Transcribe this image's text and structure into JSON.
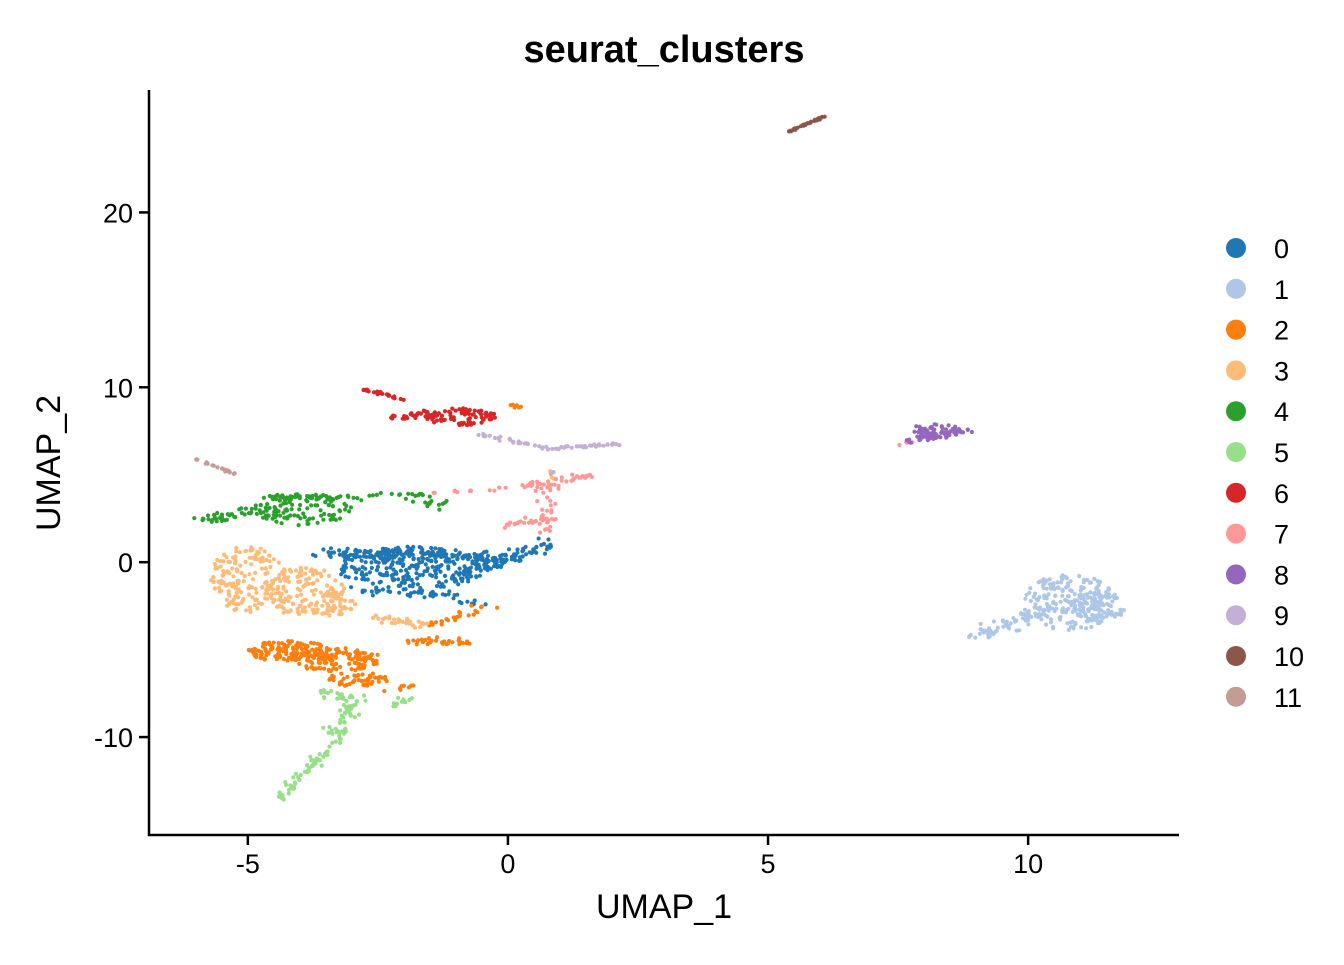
{
  "chart_data": {
    "type": "scatter",
    "title": "seurat_clusters",
    "xlabel": "UMAP_1",
    "ylabel": "UMAP_2",
    "xlim": [
      -6.9,
      12.9
    ],
    "ylim": [
      -15.6,
      27.0
    ],
    "x_ticks": [
      -5,
      0,
      5,
      10
    ],
    "y_ticks": [
      -10,
      0,
      10,
      20
    ],
    "x_tick_labels": [
      "-5",
      "0",
      "5",
      "10"
    ],
    "y_tick_labels": [
      "-10",
      "0",
      "10",
      "20"
    ],
    "grid": false,
    "legend_position": "right",
    "series": [
      {
        "name": "0",
        "color": "#1F77B4",
        "regions": [
          {
            "shape": "blob",
            "cx": -1.8,
            "cy": -0.3,
            "rx": 1.5,
            "ry": 1.2,
            "n": 260
          },
          {
            "shape": "line",
            "from": [
              -3.6,
              0.6
            ],
            "to": [
              -0.2,
              0.2
            ],
            "spread": 0.5,
            "n": 120
          },
          {
            "shape": "line",
            "from": [
              -0.8,
              -0.6
            ],
            "to": [
              0.8,
              1.0
            ],
            "spread": 0.45,
            "n": 90
          },
          {
            "shape": "line",
            "from": [
              -3.0,
              -1.6
            ],
            "to": [
              -1.0,
              -1.8
            ],
            "spread": 0.3,
            "n": 40
          },
          {
            "shape": "line",
            "from": [
              -0.9,
              -2.3
            ],
            "to": [
              -0.4,
              -2.4
            ],
            "spread": 0.2,
            "n": 8
          }
        ]
      },
      {
        "name": "1",
        "color": "#AEC7E8",
        "regions": [
          {
            "shape": "blob",
            "cx": 10.8,
            "cy": -2.3,
            "rx": 0.9,
            "ry": 1.6,
            "n": 200
          },
          {
            "shape": "blob",
            "cx": 11.3,
            "cy": -2.6,
            "rx": 0.55,
            "ry": 0.9,
            "n": 80
          },
          {
            "shape": "line",
            "from": [
              9.0,
              -4.3
            ],
            "to": [
              10.2,
              -2.8
            ],
            "spread": 0.4,
            "n": 60
          }
        ]
      },
      {
        "name": "2",
        "color": "#FF7F0E",
        "regions": [
          {
            "shape": "blob",
            "cx": -4.2,
            "cy": -5.1,
            "rx": 0.8,
            "ry": 0.6,
            "n": 120
          },
          {
            "shape": "blob",
            "cx": -3.3,
            "cy": -5.6,
            "rx": 0.9,
            "ry": 0.7,
            "n": 120
          },
          {
            "shape": "blob",
            "cx": -2.9,
            "cy": -6.7,
            "rx": 0.6,
            "ry": 0.4,
            "n": 50
          },
          {
            "shape": "line",
            "from": [
              -2.0,
              -4.5
            ],
            "to": [
              -0.6,
              -4.6
            ],
            "spread": 0.25,
            "n": 35
          },
          {
            "shape": "line",
            "from": [
              -1.5,
              -3.7
            ],
            "to": [
              -0.4,
              -2.5
            ],
            "spread": 0.25,
            "n": 25
          },
          {
            "shape": "line",
            "from": [
              -2.4,
              -7.4
            ],
            "to": [
              -1.8,
              -7.0
            ],
            "spread": 0.2,
            "n": 8
          },
          {
            "shape": "line",
            "from": [
              0.1,
              9.0
            ],
            "to": [
              0.3,
              8.8
            ],
            "spread": 0.15,
            "n": 6
          }
        ]
      },
      {
        "name": "3",
        "color": "#FFBB78",
        "regions": [
          {
            "shape": "blob",
            "cx": -5.0,
            "cy": -1.0,
            "rx": 0.75,
            "ry": 1.9,
            "n": 160
          },
          {
            "shape": "blob",
            "cx": -3.9,
            "cy": -1.7,
            "rx": 0.8,
            "ry": 1.4,
            "n": 140
          },
          {
            "shape": "blob",
            "cx": -3.3,
            "cy": -2.4,
            "rx": 0.4,
            "ry": 0.7,
            "n": 30
          },
          {
            "shape": "line",
            "from": [
              -2.6,
              -3.1
            ],
            "to": [
              -1.6,
              -3.6
            ],
            "spread": 0.25,
            "n": 30
          },
          {
            "shape": "line",
            "from": [
              0.7,
              5.3
            ],
            "to": [
              0.9,
              4.8
            ],
            "spread": 0.1,
            "n": 4
          }
        ]
      },
      {
        "name": "4",
        "color": "#2CA02C",
        "regions": [
          {
            "shape": "blob",
            "cx": -3.9,
            "cy": 3.0,
            "rx": 0.9,
            "ry": 0.9,
            "n": 100
          },
          {
            "shape": "line",
            "from": [
              -5.8,
              2.4
            ],
            "to": [
              -4.6,
              3.0
            ],
            "spread": 0.4,
            "n": 50
          },
          {
            "shape": "line",
            "from": [
              -4.8,
              3.7
            ],
            "to": [
              -1.5,
              3.8
            ],
            "spread": 0.3,
            "n": 60
          },
          {
            "shape": "line",
            "from": [
              -1.7,
              3.4
            ],
            "to": [
              -1.2,
              3.3
            ],
            "spread": 0.3,
            "n": 12
          }
        ]
      },
      {
        "name": "5",
        "color": "#98DF8A",
        "regions": [
          {
            "shape": "line",
            "from": [
              -4.4,
              -13.5
            ],
            "to": [
              -3.2,
              -10.0
            ],
            "spread": 0.25,
            "n": 60
          },
          {
            "shape": "line",
            "from": [
              -3.3,
              -10.0
            ],
            "to": [
              -3.0,
              -8.0
            ],
            "spread": 0.3,
            "n": 50
          },
          {
            "shape": "line",
            "from": [
              -3.6,
              -7.5
            ],
            "to": [
              -2.8,
              -7.8
            ],
            "spread": 0.3,
            "n": 25
          },
          {
            "shape": "line",
            "from": [
              -2.2,
              -8.2
            ],
            "to": [
              -1.8,
              -7.6
            ],
            "spread": 0.2,
            "n": 12
          }
        ]
      },
      {
        "name": "6",
        "color": "#D62728",
        "regions": [
          {
            "shape": "line",
            "from": [
              -2.8,
              9.9
            ],
            "to": [
              -2.0,
              9.3
            ],
            "spread": 0.1,
            "n": 25
          },
          {
            "shape": "blob",
            "cx": -0.9,
            "cy": 8.3,
            "rx": 0.7,
            "ry": 0.5,
            "n": 90
          },
          {
            "shape": "line",
            "from": [
              -2.2,
              8.2
            ],
            "to": [
              -1.4,
              8.6
            ],
            "spread": 0.3,
            "n": 30
          }
        ]
      },
      {
        "name": "7",
        "color": "#FF9896",
        "regions": [
          {
            "shape": "line",
            "from": [
              0.2,
              4.3
            ],
            "to": [
              1.7,
              5.0
            ],
            "spread": 0.3,
            "n": 40
          },
          {
            "shape": "line",
            "from": [
              0.8,
              4.3
            ],
            "to": [
              0.7,
              1.6
            ],
            "spread": 0.2,
            "n": 30
          },
          {
            "shape": "line",
            "from": [
              -0.3,
              2.0
            ],
            "to": [
              0.8,
              2.5
            ],
            "spread": 0.3,
            "n": 25
          },
          {
            "shape": "line",
            "from": [
              -1.5,
              4.0
            ],
            "to": [
              0.0,
              4.2
            ],
            "spread": 0.15,
            "n": 12
          },
          {
            "shape": "line",
            "from": [
              7.5,
              6.7
            ],
            "to": [
              7.8,
              6.9
            ],
            "spread": 0.1,
            "n": 4
          }
        ]
      },
      {
        "name": "8",
        "color": "#9467BD",
        "regions": [
          {
            "shape": "blob",
            "cx": 8.2,
            "cy": 7.5,
            "rx": 0.5,
            "ry": 0.45,
            "n": 60
          },
          {
            "shape": "line",
            "from": [
              7.7,
              6.9
            ],
            "to": [
              8.9,
              7.6
            ],
            "spread": 0.2,
            "n": 40
          }
        ]
      },
      {
        "name": "9",
        "color": "#C5B0D5",
        "regions": [
          {
            "shape": "line",
            "from": [
              -0.5,
              7.3
            ],
            "to": [
              0.8,
              6.5
            ],
            "spread": 0.15,
            "n": 30
          },
          {
            "shape": "line",
            "from": [
              0.8,
              6.5
            ],
            "to": [
              2.3,
              6.8
            ],
            "spread": 0.1,
            "n": 30
          },
          {
            "shape": "line",
            "from": [
              0.8,
              5.0
            ],
            "to": [
              0.9,
              5.3
            ],
            "spread": 0.1,
            "n": 3
          }
        ]
      },
      {
        "name": "10",
        "color": "#8C564B",
        "regions": [
          {
            "shape": "line",
            "from": [
              5.4,
              24.6
            ],
            "to": [
              6.1,
              25.5
            ],
            "spread": 0.05,
            "n": 35
          }
        ]
      },
      {
        "name": "11",
        "color": "#C49C94",
        "regions": [
          {
            "shape": "line",
            "from": [
              -6.0,
              5.9
            ],
            "to": [
              -5.2,
              5.0
            ],
            "spread": 0.06,
            "n": 25
          }
        ]
      }
    ]
  }
}
